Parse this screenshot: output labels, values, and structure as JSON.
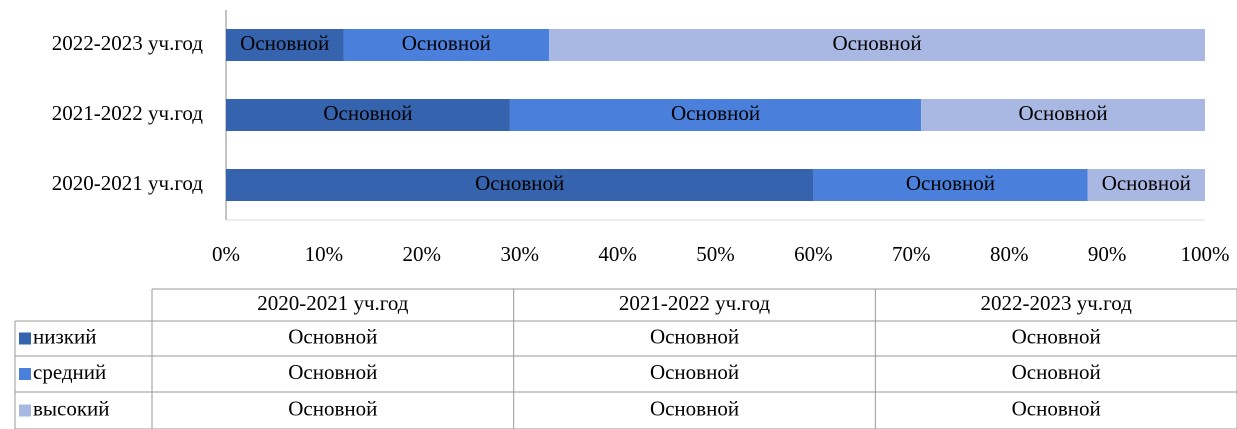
{
  "chart_data": {
    "type": "stacked_bar_horizontal",
    "categories": [
      "2020-2021 уч.год",
      "2021-2022 уч.год",
      "2022-2023 уч.год"
    ],
    "series": [
      {
        "name": "низкий",
        "color": "#3563ad",
        "values": [
          60,
          29,
          12
        ],
        "value_labels": [
          "Основной",
          "Основной",
          "Основной"
        ]
      },
      {
        "name": "средний",
        "color": "#4a80db",
        "values": [
          28,
          42,
          21
        ],
        "value_labels": [
          "Основной",
          "Основной",
          "Основной"
        ]
      },
      {
        "name": "высокий",
        "color": "#a9b8e2",
        "values": [
          12,
          29,
          67
        ],
        "value_labels": [
          "Основной",
          "Основной",
          "Основной"
        ]
      }
    ],
    "xlim": [
      0,
      100
    ],
    "xticks": [
      {
        "value": 0,
        "label": "0%"
      },
      {
        "value": 10,
        "label": "10%"
      },
      {
        "value": 20,
        "label": "20%"
      },
      {
        "value": 30,
        "label": "30%"
      },
      {
        "value": 40,
        "label": "40%"
      },
      {
        "value": 50,
        "label": "50%"
      },
      {
        "value": 60,
        "label": "60%"
      },
      {
        "value": 70,
        "label": "70%"
      },
      {
        "value": 80,
        "label": "80%"
      },
      {
        "value": 90,
        "label": "90%"
      },
      {
        "value": 100,
        "label": "100%"
      }
    ],
    "grid": false,
    "data_table": true
  }
}
